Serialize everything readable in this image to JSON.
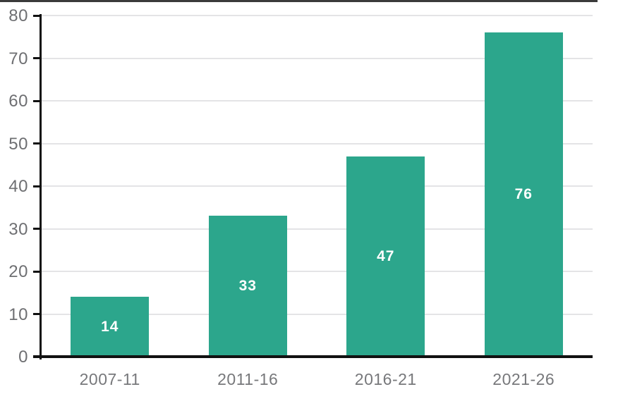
{
  "chart_data": {
    "type": "bar",
    "title": "",
    "xlabel": "",
    "ylabel": "",
    "categories": [
      "2007-11",
      "2011-16",
      "2016-21",
      "2021-26"
    ],
    "values": [
      14,
      33,
      47,
      76
    ],
    "value_labels": [
      "14",
      "33",
      "47",
      "76"
    ],
    "ylim": [
      0,
      80
    ],
    "ytick_step": 10,
    "ytick_labels": [
      "0",
      "10",
      "20",
      "30",
      "40",
      "50",
      "60",
      "70",
      "80"
    ],
    "grid": "horizontal",
    "legend": "none",
    "bar_color": "#2CA68C",
    "value_label_color": "#ffffff",
    "grid_color": "#e4e4e6",
    "axis_color": "#111111",
    "tick_label_color": "#6e6f72",
    "category_label_color": "#77787b",
    "top_border_color": "#3a3a3a"
  }
}
